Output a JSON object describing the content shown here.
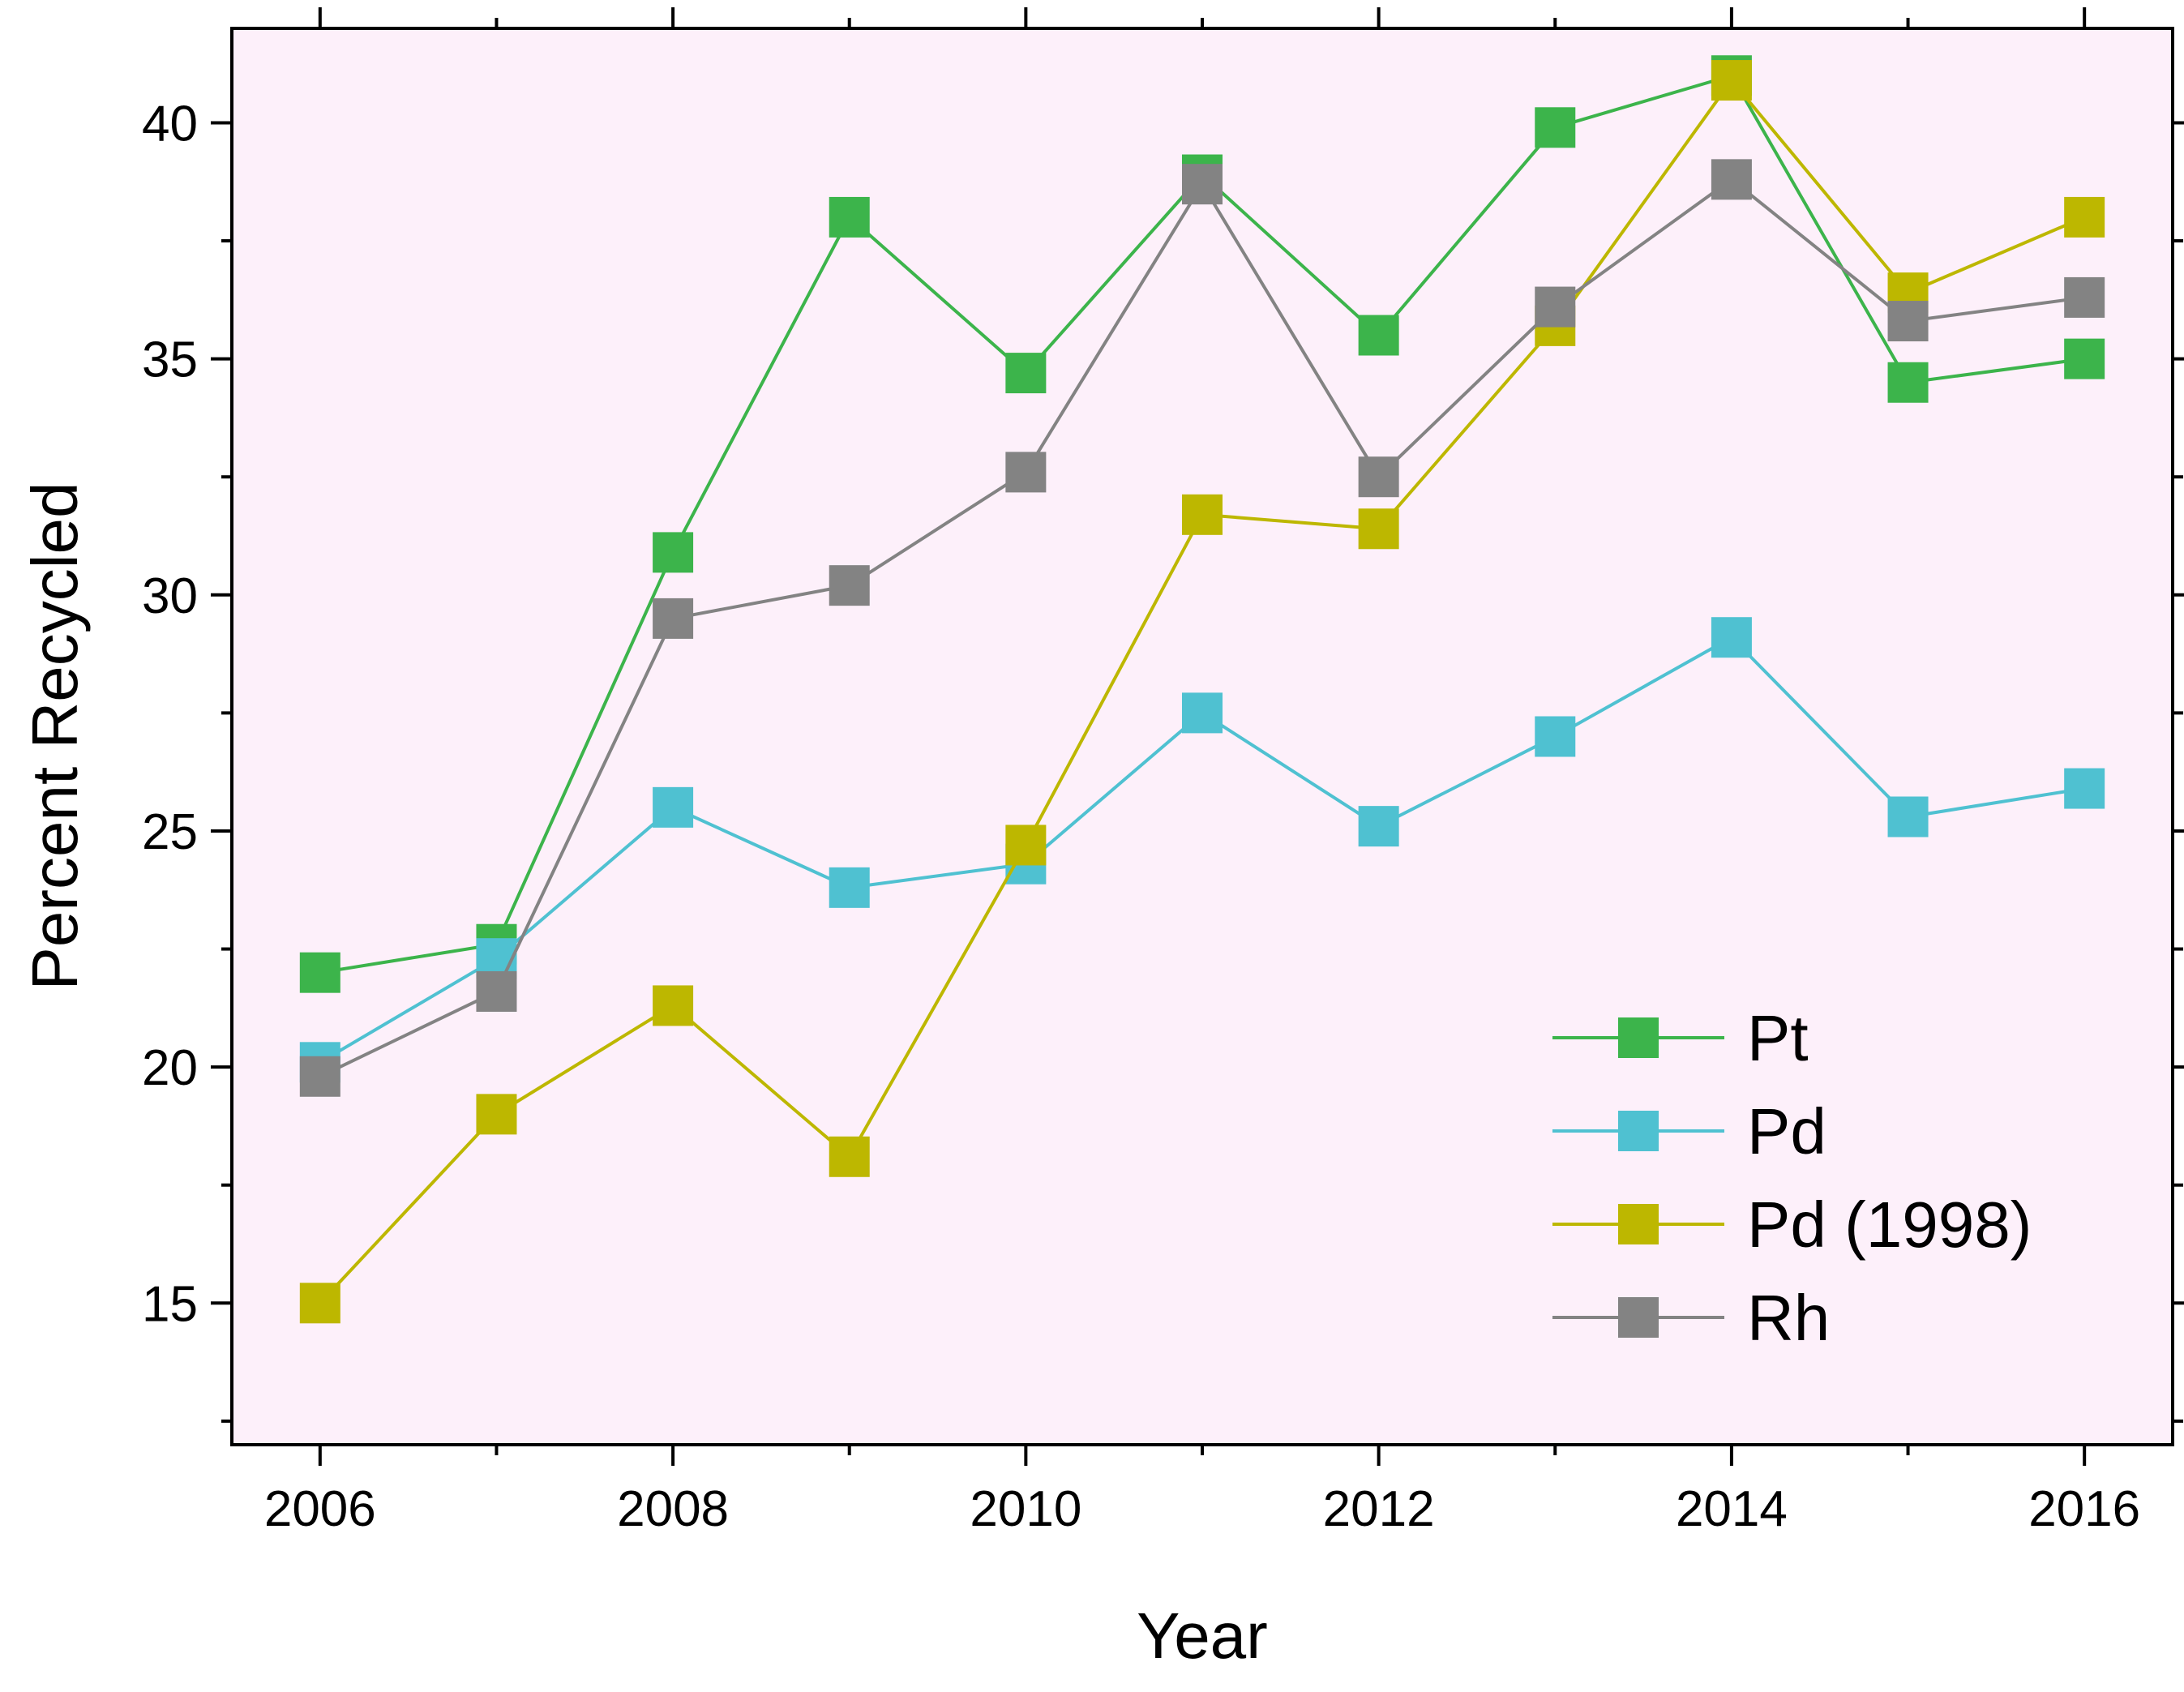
{
  "chart_data": {
    "type": "line",
    "title": "",
    "xlabel": "Year",
    "ylabel": "Percent Recycled",
    "x": [
      2006,
      2007,
      2008,
      2009,
      2010,
      2011,
      2012,
      2013,
      2014,
      2015,
      2016
    ],
    "xlim": [
      2005.5,
      2016.5
    ],
    "ylim": [
      12,
      42
    ],
    "x_ticks": [
      "2006",
      "2008",
      "2010",
      "2012",
      "2014",
      "2016"
    ],
    "y_ticks": [
      "15",
      "20",
      "25",
      "30",
      "35",
      "40"
    ],
    "grid": false,
    "background_color": "#fdf0fa",
    "legend_position": "bottom-right",
    "marker": "square",
    "series": [
      {
        "name": "Pt",
        "color": "#3cb44b",
        "values": [
          22.0,
          22.6,
          30.9,
          38.0,
          34.7,
          38.9,
          35.5,
          39.9,
          41.0,
          34.5,
          35.0
        ]
      },
      {
        "name": "Pd",
        "color": "#4fc1d1",
        "values": [
          20.1,
          22.3,
          25.5,
          23.8,
          24.3,
          27.5,
          25.1,
          27.0,
          29.1,
          25.3,
          25.9
        ]
      },
      {
        "name": "Pd (1998)",
        "color": "#bdb700",
        "values": [
          15.0,
          19.0,
          21.3,
          18.1,
          24.7,
          31.7,
          31.4,
          35.7,
          40.9,
          36.4,
          38.0
        ]
      },
      {
        "name": "Rh",
        "color": "#838383",
        "values": [
          19.8,
          21.6,
          29.5,
          30.2,
          32.6,
          38.7,
          32.5,
          36.1,
          38.8,
          35.8,
          36.3
        ]
      }
    ]
  }
}
